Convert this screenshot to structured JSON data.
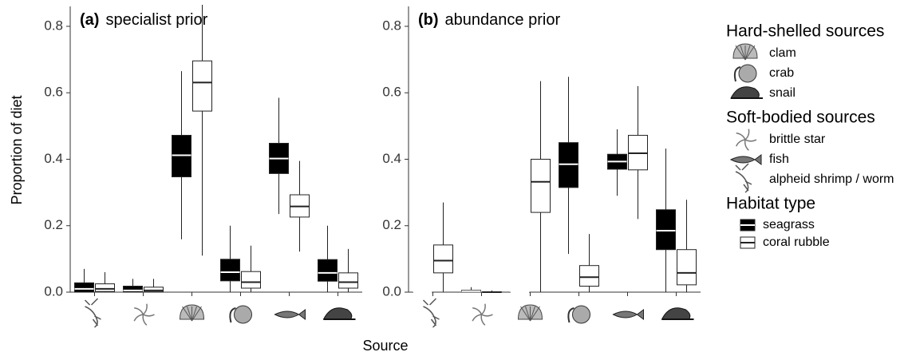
{
  "y_label": "Proportion of diet",
  "x_label": "Source",
  "chart_data": [
    {
      "type": "box",
      "panel_label": "(a)",
      "title": "specialist prior",
      "categories": [
        null,
        null,
        null,
        null,
        null,
        null
      ],
      "ylim": [
        0,
        0.86
      ],
      "yticks": [
        {
          "value": 0,
          "label": "0.0"
        },
        0.2,
        0.4,
        0.6,
        0.8
      ],
      "series": [
        {
          "name": "seagrass",
          "color": "#000000",
          "whislo": [
            0,
            0,
            0.159,
            0,
            0.235,
            0
          ],
          "q1": [
            0,
            0,
            0.347,
            0.034,
            0.357,
            0.033
          ],
          "median": [
            0.01,
            0.005,
            0.412,
            0.06,
            0.402,
            0.058
          ],
          "q3": [
            0.028,
            0.018,
            0.472,
            0.099,
            0.448,
            0.098
          ],
          "whishi": [
            0.07,
            0.04,
            0.665,
            0.2,
            0.585,
            0.2
          ]
        },
        {
          "name": "coral rubble",
          "color": "#ffffff",
          "whislo": [
            0,
            0,
            0.11,
            0,
            0.122,
            0
          ],
          "q1": [
            0.002,
            0.001,
            0.545,
            0.012,
            0.226,
            0.012
          ],
          "median": [
            0.01,
            0.005,
            0.631,
            0.03,
            0.258,
            0.03
          ],
          "q3": [
            0.025,
            0.015,
            0.696,
            0.062,
            0.293,
            0.058
          ],
          "whishi": [
            0.06,
            0.04,
            0.87,
            0.14,
            0.395,
            0.13
          ]
        }
      ]
    },
    {
      "type": "box",
      "panel_label": "(b)",
      "title": "abundance prior",
      "categories": [
        null,
        null,
        null,
        null,
        null,
        null
      ],
      "ylim": [
        0,
        0.86
      ],
      "yticks": [
        {
          "value": 0,
          "label": "0.0"
        },
        0.2,
        0.4,
        0.6,
        0.8
      ],
      "series": [
        {
          "name": "seagrass",
          "color": "#000000",
          "whislo": [
            0,
            0,
            0,
            0.115,
            0.29,
            0
          ],
          "q1": [
            0,
            0,
            0,
            0.315,
            0.37,
            0.128
          ],
          "median": [
            0,
            0.003,
            0,
            0.385,
            0.393,
            0.185
          ],
          "q3": [
            0,
            0.006,
            0,
            0.45,
            0.415,
            0.248
          ],
          "whishi": [
            0,
            0.015,
            0,
            0.648,
            0.49,
            0.432
          ]
        },
        {
          "name": "coral rubble",
          "color": "#ffffff",
          "whislo": [
            0,
            0,
            0,
            0,
            0.22,
            0
          ],
          "q1": [
            0.058,
            0,
            0.24,
            0.018,
            0.368,
            0.022
          ],
          "median": [
            0.095,
            0,
            0.332,
            0.045,
            0.418,
            0.058
          ],
          "q3": [
            0.142,
            0.001,
            0.4,
            0.08,
            0.472,
            0.128
          ],
          "whishi": [
            0.27,
            0.005,
            0.635,
            0.175,
            0.62,
            0.278
          ]
        }
      ]
    }
  ],
  "legend": {
    "groups": [
      {
        "title": "Hard-shelled sources",
        "items": [
          "clam",
          "crab",
          "snail"
        ]
      },
      {
        "title": "Soft-bodied sources",
        "items": [
          "brittle star",
          "fish",
          "alpheid shrimp / worm"
        ]
      }
    ],
    "habitat_title": "Habitat type"
  }
}
